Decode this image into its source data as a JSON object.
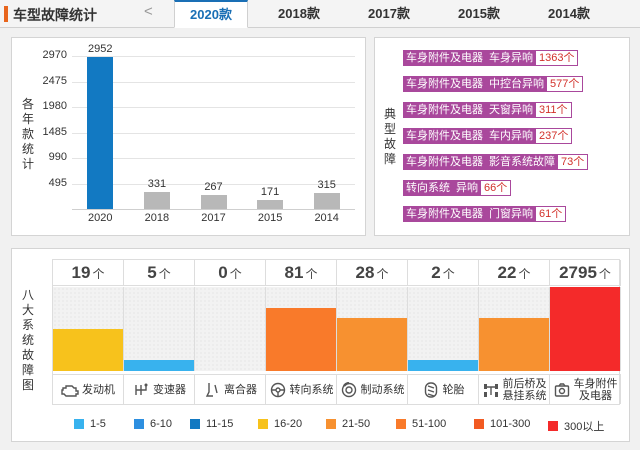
{
  "header": {
    "title": "车型故障统计",
    "prev_arrow": "<",
    "tabs": [
      {
        "label": "2020款",
        "active": true
      },
      {
        "label": "2018款",
        "active": false
      },
      {
        "label": "2017款",
        "active": false
      },
      {
        "label": "2015款",
        "active": false
      },
      {
        "label": "2014款",
        "active": false
      }
    ]
  },
  "chart_data": {
    "type": "bar",
    "ylabel": "各年款统计",
    "categories": [
      "2020",
      "2018",
      "2017",
      "2015",
      "2014"
    ],
    "values": [
      2952,
      331,
      267,
      171,
      315
    ],
    "yticks": [
      495,
      990,
      1485,
      1980,
      2475,
      2970
    ],
    "ylim": [
      0,
      2970
    ],
    "colors": [
      "#1279c2",
      "#b8b8b8",
      "#b8b8b8",
      "#b8b8b8",
      "#b8b8b8"
    ],
    "grid": true
  },
  "faults": {
    "label": "典型故障",
    "items": [
      {
        "tags": [
          "车身附件及电器",
          "车身异响"
        ],
        "count": "1363个"
      },
      {
        "tags": [
          "车身附件及电器",
          "中控台异响"
        ],
        "count": "577个"
      },
      {
        "tags": [
          "车身附件及电器",
          "天窗异响"
        ],
        "count": "311个"
      },
      {
        "tags": [
          "车身附件及电器",
          "车内异响"
        ],
        "count": "237个"
      },
      {
        "tags": [
          "车身附件及电器",
          "影音系统故障"
        ],
        "count": "73个"
      },
      {
        "tags": [
          "转向系统",
          "异响"
        ],
        "count": "66个"
      },
      {
        "tags": [
          "车身附件及电器",
          "门窗异响"
        ],
        "count": "61个"
      }
    ]
  },
  "systems": {
    "label": "八大系统故障图",
    "unit": "个",
    "items": [
      {
        "name": "发动机",
        "count": "19",
        "level": 0.5,
        "color": "#f7c21c",
        "icon": "engine-icon"
      },
      {
        "name": "变速器",
        "count": "5",
        "level": 0.13,
        "color": "#38b2ee",
        "icon": "gearshift-icon"
      },
      {
        "name": "离合器",
        "count": "0",
        "level": 0,
        "color": "#38b2ee",
        "icon": "clutch-icon"
      },
      {
        "name": "转向系统",
        "count": "81",
        "level": 0.75,
        "color": "#f97a2a",
        "icon": "steering-wheel-icon"
      },
      {
        "name": "制动系统",
        "count": "28",
        "level": 0.63,
        "color": "#f79130",
        "icon": "brake-disc-icon"
      },
      {
        "name": "轮胎",
        "count": "2",
        "level": 0.13,
        "color": "#38b2ee",
        "icon": "tire-icon"
      },
      {
        "name": "前后桥及悬挂系统",
        "name_lines": [
          "前后桥及",
          "悬挂系统"
        ],
        "count": "22",
        "level": 0.63,
        "color": "#f79130",
        "icon": "suspension-icon"
      },
      {
        "name": "车身附件及电器",
        "name_lines": [
          "车身附件",
          "及电器"
        ],
        "count": "2795",
        "level": 1.0,
        "color": "#f42a2a",
        "icon": "camera-icon"
      }
    ]
  },
  "legend": [
    {
      "label": "1-5",
      "color": "#38b2ee"
    },
    {
      "label": "6-10",
      "color": "#2d8fe0"
    },
    {
      "label": "11-15",
      "color": "#1279c2"
    },
    {
      "label": "16-20",
      "color": "#f7c21c"
    },
    {
      "label": "21-50",
      "color": "#f79130"
    },
    {
      "label": "51-100",
      "color": "#f97a2a"
    },
    {
      "label": "101-300",
      "color": "#f25a22"
    },
    {
      "label": "300以上",
      "color": "#f42a2a"
    }
  ]
}
